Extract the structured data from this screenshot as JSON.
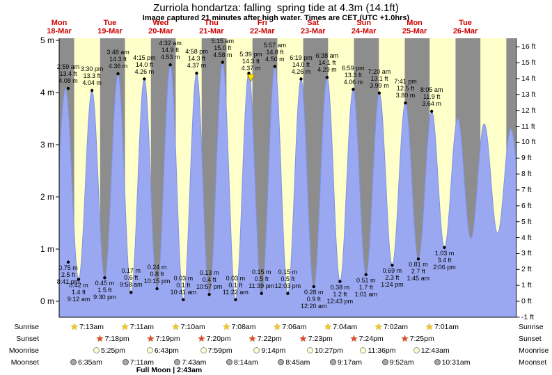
{
  "title": "Zurriola hondartza: falling  spring tide at 4.3m (14.1ft)",
  "subtitle": "Image captured 21 minutes after high water. Times are CET (UTC +1.0hrs)",
  "colors": {
    "night": "#8d8d8d",
    "daylight": "#ffffc9",
    "tide_fill": "#9aa8f1",
    "tide_stroke": "#7f92e6",
    "day_label_red": "#cc0000",
    "marker_yellow": "#ffe400",
    "sunrise_star": "#f5c71a",
    "sunset_star": "#e2492f",
    "moonrise_fill": "#fffbe0",
    "moonrise_border": "#99996a",
    "moonset_fill": "#a8a8a8",
    "moonset_border": "#5a5a5a"
  },
  "days": [
    {
      "name": "Mon",
      "date": "18-Mar"
    },
    {
      "name": "Tue",
      "date": "19-Mar"
    },
    {
      "name": "Wed",
      "date": "20-Mar"
    },
    {
      "name": "Thu",
      "date": "21-Mar"
    },
    {
      "name": "Fri",
      "date": "22-Mar"
    },
    {
      "name": "Sat",
      "date": "23-Mar"
    },
    {
      "name": "Sun",
      "date": "24-Mar"
    },
    {
      "name": "Mon",
      "date": "25-Mar"
    },
    {
      "name": "Tue",
      "date": "26-Mar"
    }
  ],
  "axes": {
    "left": [
      {
        "value": 5,
        "label": "5 m"
      },
      {
        "value": 4,
        "label": "4 m"
      },
      {
        "value": 3,
        "label": "3 m"
      },
      {
        "value": 2,
        "label": "2 m"
      },
      {
        "value": 1,
        "label": "1 m"
      },
      {
        "value": 0,
        "label": "0 m"
      }
    ],
    "right": [
      {
        "value": 16,
        "label": "16 ft"
      },
      {
        "value": 15,
        "label": "15 ft"
      },
      {
        "value": 14,
        "label": "14 ft"
      },
      {
        "value": 13,
        "label": "13 ft"
      },
      {
        "value": 12,
        "label": "12 ft"
      },
      {
        "value": 11,
        "label": "11 ft"
      },
      {
        "value": 10,
        "label": "10 ft"
      },
      {
        "value": 9,
        "label": "9 ft"
      },
      {
        "value": 8,
        "label": "8 ft"
      },
      {
        "value": 7,
        "label": "7 ft"
      },
      {
        "value": 6,
        "label": "6 ft"
      },
      {
        "value": 5,
        "label": "5 ft"
      },
      {
        "value": 4,
        "label": "4 ft"
      },
      {
        "value": 3,
        "label": "3 ft"
      },
      {
        "value": 2,
        "label": "2 ft"
      },
      {
        "value": 1,
        "label": "1 ft"
      },
      {
        "value": 0,
        "label": "0 ft"
      },
      {
        "value": -1,
        "label": "-1 ft"
      }
    ]
  },
  "chart_data": {
    "type": "area",
    "title": "Zurriola hondartza: falling spring tide at 4.3m (14.1ft)",
    "x_days": [
      "18-Mar",
      "19-Mar",
      "20-Mar",
      "21-Mar",
      "22-Mar",
      "23-Mar",
      "24-Mar",
      "25-Mar",
      "26-Mar"
    ],
    "y_left": {
      "unit": "m",
      "min": -0.31,
      "max": 5.04
    },
    "y_right": {
      "unit": "ft",
      "min": -1,
      "max": 16
    },
    "events": [
      {
        "kind": "low",
        "time": "8:41 pm",
        "t": -3.32,
        "m": "0.75",
        "ft": "2.5"
      },
      {
        "kind": "high",
        "time": "2:59 am",
        "t": 2.98,
        "m": "4.08",
        "ft": "13.4"
      },
      {
        "kind": "low",
        "time": "9:12 am",
        "t": 9.2,
        "m": "0.42",
        "ft": "1.4"
      },
      {
        "kind": "high",
        "time": "3:30 pm",
        "t": 15.5,
        "m": "4.04",
        "ft": "13.3"
      },
      {
        "kind": "low",
        "time": "9:30 pm",
        "t": 21.5,
        "m": "0.45",
        "ft": "1.5"
      },
      {
        "kind": "high",
        "time": "3:48 am",
        "t": 27.8,
        "m": "4.36",
        "ft": "14.3"
      },
      {
        "kind": "low",
        "time": "9:58 am",
        "t": 33.97,
        "m": "0.17",
        "ft": "0.6"
      },
      {
        "kind": "high",
        "time": "4:15 pm",
        "t": 40.25,
        "m": "4.26",
        "ft": "14.0"
      },
      {
        "kind": "low",
        "time": "10:15 pm",
        "t": 46.25,
        "m": "0.24",
        "ft": "0.8"
      },
      {
        "kind": "high",
        "time": "4:32 am",
        "t": 52.53,
        "m": "4.53",
        "ft": "14.9"
      },
      {
        "kind": "low",
        "time": "10:41 am",
        "t": 58.68,
        "m": "0.03",
        "ft": "0.1"
      },
      {
        "kind": "high",
        "time": "4:58 pm",
        "t": 64.97,
        "m": "4.37",
        "ft": "14.3"
      },
      {
        "kind": "low",
        "time": "10:57 pm",
        "t": 70.95,
        "m": "0.13",
        "ft": "0.4"
      },
      {
        "kind": "high",
        "time": "5:15 am",
        "t": 77.25,
        "m": "4.58",
        "ft": "15.0"
      },
      {
        "kind": "low",
        "time": "11:22 am",
        "t": 83.37,
        "m": "0.03",
        "ft": "0.1"
      },
      {
        "kind": "high",
        "time": "5:39 pm",
        "t": 89.65,
        "m": "4.37",
        "ft": "14.3",
        "marker": true
      },
      {
        "kind": "low",
        "time": "11:39 pm",
        "t": 95.65,
        "m": "0.15",
        "ft": "0.5"
      },
      {
        "kind": "high",
        "time": "5:57 am",
        "t": 101.95,
        "m": "4.50",
        "ft": "14.8"
      },
      {
        "kind": "low",
        "time": "12:03 pm",
        "t": 108.05,
        "m": "0.15",
        "ft": "0.5"
      },
      {
        "kind": "high",
        "time": "6:19 pm",
        "t": 114.32,
        "m": "4.26",
        "ft": "14.0"
      },
      {
        "kind": "low",
        "time": "12:20 am",
        "t": 120.33,
        "m": "0.28",
        "ft": "0.9"
      },
      {
        "kind": "high",
        "time": "6:38 am",
        "t": 126.63,
        "m": "4.29",
        "ft": "14.1"
      },
      {
        "kind": "low",
        "time": "12:43 pm",
        "t": 132.72,
        "m": "0.38",
        "ft": "1.2"
      },
      {
        "kind": "high",
        "time": "6:59 pm",
        "t": 138.98,
        "m": "4.06",
        "ft": "13.3"
      },
      {
        "kind": "low",
        "time": "1:01 am",
        "t": 145.02,
        "m": "0.51",
        "ft": "1.7"
      },
      {
        "kind": "high",
        "time": "7:20 am",
        "t": 151.33,
        "m": "3.99",
        "ft": "13.1"
      },
      {
        "kind": "low",
        "time": "1:24 pm",
        "t": 157.4,
        "m": "0.69",
        "ft": "2.3"
      },
      {
        "kind": "high",
        "time": "7:41 pm",
        "t": 163.68,
        "m": "3.80",
        "ft": "12.5"
      },
      {
        "kind": "low",
        "time": "1:45 am",
        "t": 169.75,
        "m": "0.81",
        "ft": "2.7"
      },
      {
        "kind": "high",
        "time": "8:05 am",
        "t": 176.08,
        "m": "3.64",
        "ft": "11.9"
      },
      {
        "kind": "low",
        "time": "2:06 pm",
        "t": 182.1,
        "m": "1.03",
        "ft": "3.4"
      },
      {
        "kind": "high",
        "t": 188.4,
        "m": 3.5,
        "estimated": true
      },
      {
        "kind": "low",
        "t": 194.6,
        "m": 1.2,
        "estimated": true
      },
      {
        "kind": "high",
        "t": 200.9,
        "m": 3.4,
        "estimated": true
      },
      {
        "kind": "low",
        "t": 207.2,
        "m": 1.3,
        "estimated": true
      },
      {
        "kind": "high",
        "t": 213.5,
        "m": 3.3,
        "estimated": true
      },
      {
        "kind": "low",
        "t": 219.7,
        "m": 1.4,
        "estimated": true
      }
    ]
  },
  "astro": {
    "rows": [
      {
        "label": "Sunrise",
        "icon": "sunrise-star",
        "entries": [
          {
            "day": 0,
            "h": 7.22,
            "time": "7:13am"
          },
          {
            "day": 1,
            "h": 7.18,
            "time": "7:11am"
          },
          {
            "day": 2,
            "h": 7.17,
            "time": "7:10am"
          },
          {
            "day": 3,
            "h": 7.13,
            "time": "7:08am"
          },
          {
            "day": 4,
            "h": 7.1,
            "time": "7:06am"
          },
          {
            "day": 5,
            "h": 7.07,
            "time": "7:04am"
          },
          {
            "day": 6,
            "h": 7.03,
            "time": "7:02am"
          },
          {
            "day": 7,
            "h": 7.02,
            "time": "7:01am"
          }
        ]
      },
      {
        "label": "Sunset",
        "icon": "sunset-star",
        "entries": [
          {
            "day": 0,
            "h": 19.3,
            "time": "7:18pm"
          },
          {
            "day": 1,
            "h": 19.32,
            "time": "7:19pm"
          },
          {
            "day": 2,
            "h": 19.33,
            "time": "7:20pm"
          },
          {
            "day": 3,
            "h": 19.37,
            "time": "7:22pm"
          },
          {
            "day": 4,
            "h": 19.38,
            "time": "7:23pm"
          },
          {
            "day": 5,
            "h": 19.4,
            "time": "7:24pm"
          },
          {
            "day": 6,
            "h": 19.42,
            "time": "7:25pm"
          }
        ]
      },
      {
        "label": "Moonrise",
        "icon": "moonrise-circle",
        "entries": [
          {
            "day": 0,
            "h": 17.42,
            "time": "5:25pm"
          },
          {
            "day": 1,
            "h": 18.72,
            "time": "6:43pm"
          },
          {
            "day": 2,
            "h": 19.98,
            "time": "7:59pm"
          },
          {
            "day": 3,
            "h": 21.23,
            "time": "9:14pm"
          },
          {
            "day": 4,
            "h": 22.45,
            "time": "10:27pm"
          },
          {
            "day": 5,
            "h": 23.6,
            "time": "11:36pm"
          },
          {
            "day": 7,
            "h": 0.72,
            "time": "12:43am"
          }
        ]
      },
      {
        "label": "Moonset",
        "icon": "moonset-circle",
        "entries": [
          {
            "day": 0,
            "h": 6.58,
            "time": "6:35am"
          },
          {
            "day": 1,
            "h": 7.18,
            "time": "7:11am"
          },
          {
            "day": 2,
            "h": 7.72,
            "time": "7:43am"
          },
          {
            "day": 3,
            "h": 8.23,
            "time": "8:14am"
          },
          {
            "day": 4,
            "h": 8.75,
            "time": "8:45am"
          },
          {
            "day": 5,
            "h": 9.28,
            "time": "9:17am"
          },
          {
            "day": 6,
            "h": 9.87,
            "time": "9:52am"
          },
          {
            "day": 7,
            "h": 10.52,
            "time": "10:31am"
          }
        ]
      }
    ],
    "full_moon": "Full Moon | 2:43am"
  }
}
